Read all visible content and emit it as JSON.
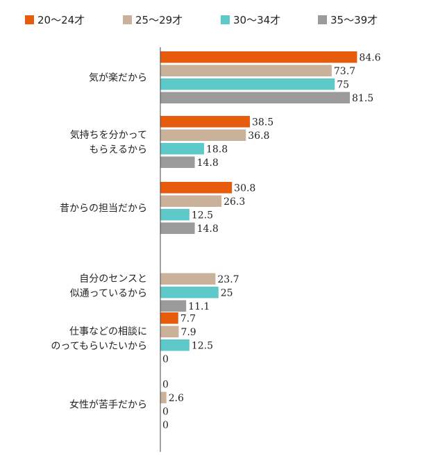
{
  "chart_data": {
    "type": "bar",
    "orientation": "horizontal",
    "categories": [
      [
        "気が楽だから"
      ],
      [
        "気持ちを分かって",
        "もらえるから"
      ],
      [
        "昔からの担当だから"
      ],
      [
        "自分のセンスと",
        "似通っているから"
      ],
      [
        "仕事などの相談に",
        "のってもらいたいから"
      ],
      [
        "女性が苦手だから"
      ]
    ],
    "series": [
      {
        "name": "20〜24才",
        "color": "#e65c0c",
        "values": [
          84.6,
          38.5,
          30.8,
          null,
          7.7,
          0
        ]
      },
      {
        "name": "25〜29才",
        "color": "#c9b299",
        "values": [
          73.7,
          36.8,
          26.3,
          23.7,
          7.9,
          2.6
        ]
      },
      {
        "name": "30〜34才",
        "color": "#5dc9c9",
        "values": [
          75,
          18.8,
          12.5,
          25,
          12.5,
          0
        ]
      },
      {
        "name": "35〜39才",
        "color": "#9b9b9b",
        "values": [
          81.5,
          14.8,
          14.8,
          11.1,
          0,
          0
        ]
      }
    ],
    "value_labels": [
      [
        "84.6",
        "38.5",
        "30.8",
        "",
        "7.7",
        "0"
      ],
      [
        "73.7",
        "36.8",
        "26.3",
        "23.7",
        "7.9",
        "2.6"
      ],
      [
        "75",
        "18.8",
        "12.5",
        "25",
        "12.5",
        "0"
      ],
      [
        "81.5",
        "14.8",
        "14.8",
        "11.1",
        "0",
        "0"
      ]
    ],
    "xlim": [
      0,
      100
    ],
    "grid": false,
    "legend_position": "top-left"
  }
}
